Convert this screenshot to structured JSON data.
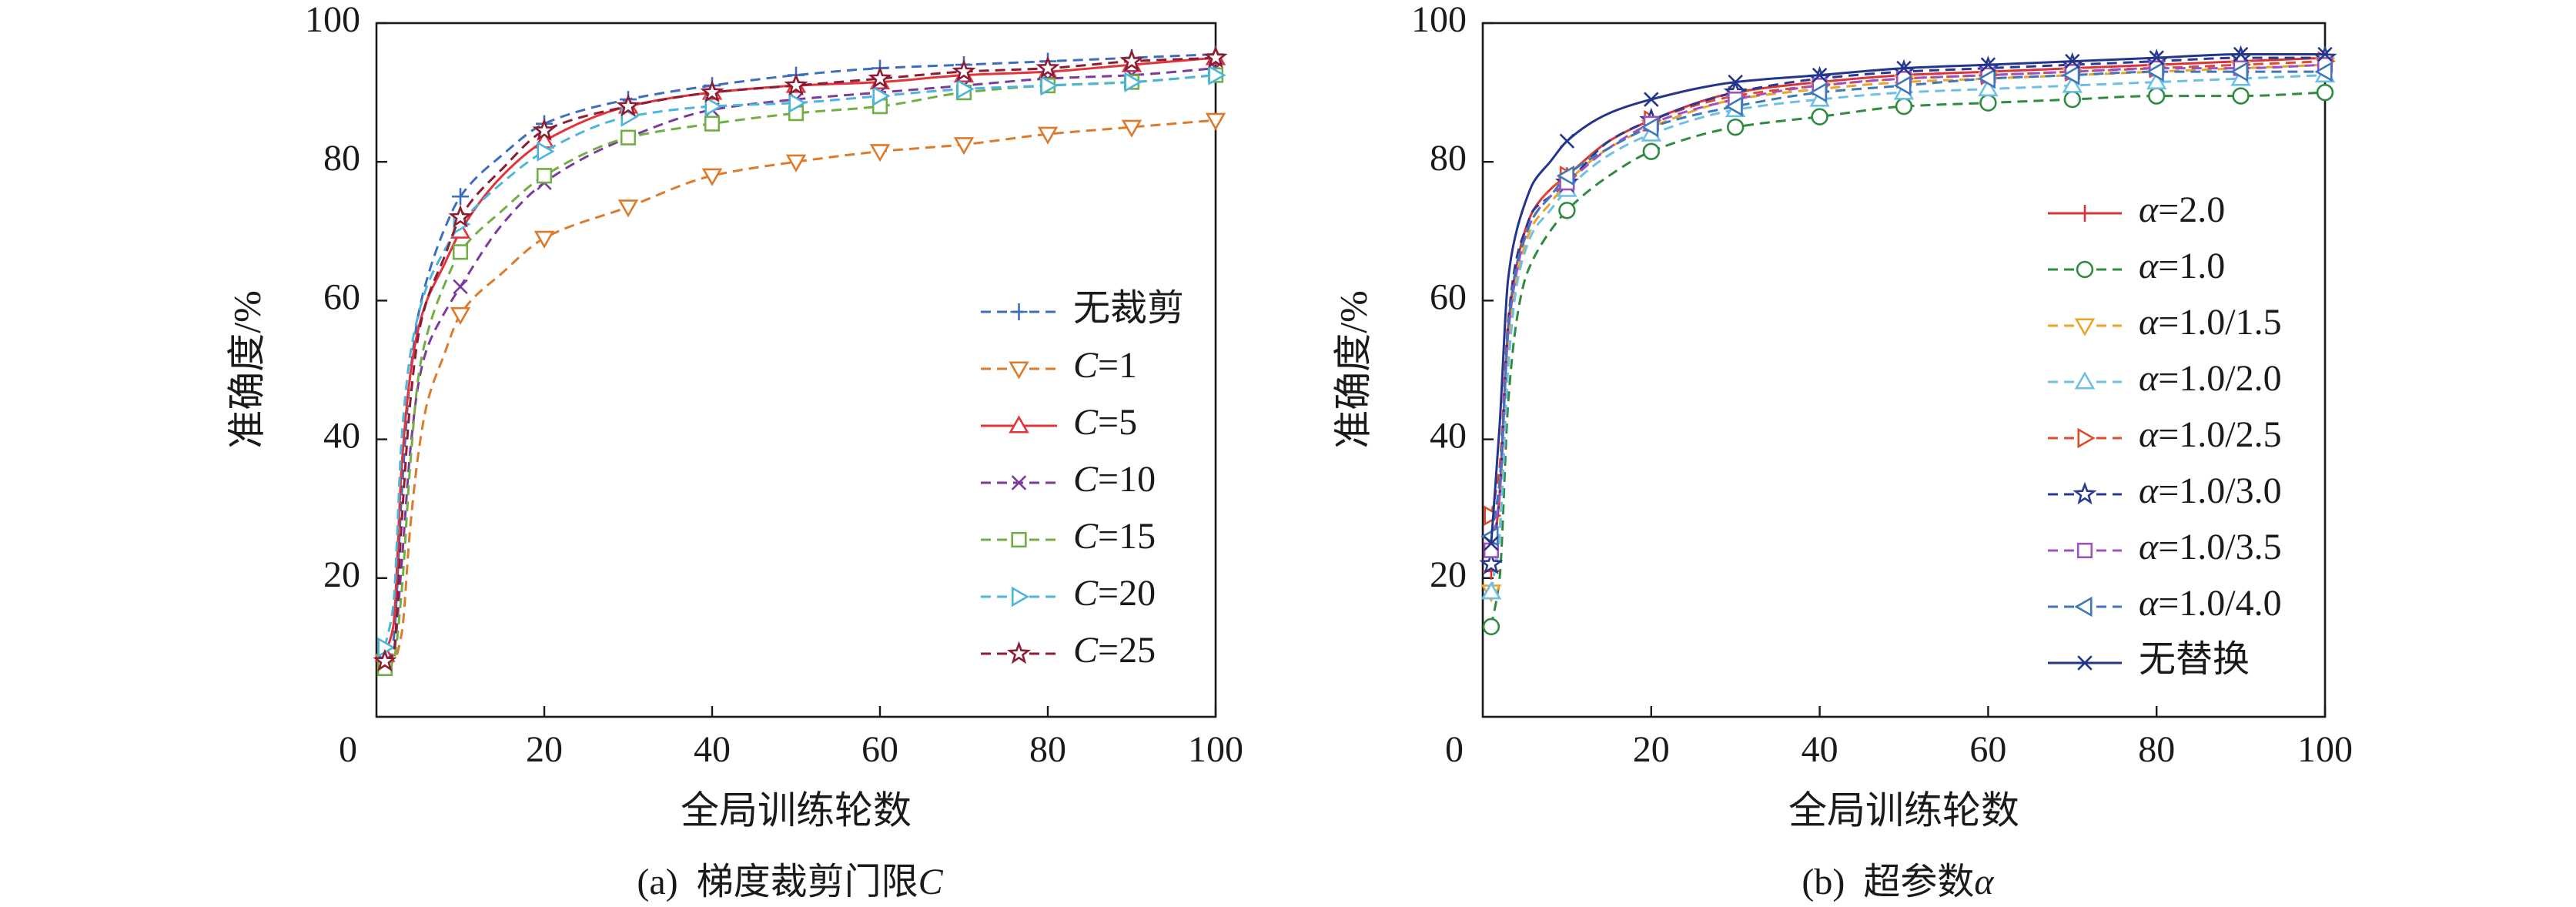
{
  "chart_data": [
    {
      "type": "line",
      "caption": "(a) 梯度裁剪门限C",
      "xlabel": "全局训练轮数",
      "ylabel": "准确度/%",
      "xlim": [
        0,
        100
      ],
      "ylim": [
        0,
        100
      ],
      "x_ticks": [
        0,
        20,
        40,
        60,
        80,
        100
      ],
      "y_ticks": [
        20,
        40,
        60,
        80,
        100
      ],
      "grid": false,
      "legend": "inside right",
      "x": [
        1,
        2,
        3,
        4,
        5,
        6,
        8,
        10,
        15,
        20,
        30,
        40,
        50,
        60,
        70,
        80,
        90,
        100
      ],
      "series": [
        {
          "name": "无裁剪",
          "color": "#3d6dc0",
          "line": "dashed",
          "marker": "plus",
          "values": [
            9,
            11,
            32,
            49,
            58,
            63,
            70,
            75,
            81,
            85.5,
            89,
            91,
            92.5,
            93.5,
            94,
            94.5,
            95,
            95.5
          ]
        },
        {
          "name": "C=1",
          "color": "#dd7b2c",
          "line": "dashed",
          "marker": "triangle-down",
          "values": [
            8,
            8,
            12,
            27,
            38,
            45,
            52,
            58,
            64,
            69,
            73.5,
            78,
            80,
            81.5,
            82.5,
            84,
            85,
            86
          ]
        },
        {
          "name": "C=5",
          "color": "#e1343b",
          "line": "solid",
          "marker": "triangle-up",
          "values": [
            9,
            13,
            36,
            49,
            56,
            60,
            65,
            70,
            78,
            83,
            88,
            90,
            91,
            91.5,
            92.5,
            93,
            94,
            95
          ]
        },
        {
          "name": "C=10",
          "color": "#7a3b9c",
          "line": "dashed",
          "marker": "x",
          "values": [
            8,
            9,
            22,
            38,
            48,
            53,
            58,
            62,
            71,
            77,
            83.5,
            87.5,
            89,
            90,
            91,
            92,
            92.5,
            93.5
          ]
        },
        {
          "name": "C=15",
          "color": "#72ae44",
          "line": "dashed",
          "marker": "square",
          "values": [
            7,
            8,
            18,
            36,
            49,
            55,
            62,
            67,
            73,
            78,
            83.5,
            85.5,
            87,
            88,
            90,
            91,
            91.5,
            92.5
          ]
        },
        {
          "name": "C=20",
          "color": "#4bb5dd",
          "line": "dashed",
          "marker": "triangle-right",
          "values": [
            10,
            16,
            40,
            52,
            58,
            62,
            67,
            71,
            77,
            81.5,
            86.5,
            88,
            88.5,
            89.5,
            90.5,
            91,
            91.5,
            92.5
          ]
        },
        {
          "name": "C=25",
          "color": "#8c1d33",
          "line": "dashed",
          "marker": "star",
          "values": [
            8,
            9,
            28,
            45,
            55,
            60,
            66,
            72,
            79,
            84.5,
            88,
            90,
            91,
            92,
            93,
            93.5,
            94.5,
            95
          ]
        }
      ]
    },
    {
      "type": "line",
      "caption": "(b) 超参数α",
      "xlabel": "全局训练轮数",
      "ylabel": "准确度/%",
      "xlim": [
        0,
        100
      ],
      "ylim": [
        0,
        100
      ],
      "x_ticks": [
        0,
        20,
        40,
        60,
        80,
        100
      ],
      "y_ticks": [
        20,
        40,
        60,
        80,
        100
      ],
      "grid": false,
      "legend": "inside right",
      "x": [
        1,
        2,
        3,
        4,
        5,
        6,
        8,
        10,
        15,
        20,
        30,
        40,
        50,
        60,
        70,
        80,
        90,
        100
      ],
      "series": [
        {
          "name": "α=2.0",
          "color": "#d8353b",
          "line": "solid",
          "marker": "plus",
          "values": [
            21,
            32,
            56,
            65,
            70,
            73,
            76,
            78,
            83,
            86,
            90,
            91.5,
            92.5,
            93,
            93.5,
            94,
            94.5,
            95
          ]
        },
        {
          "name": "α=1.0",
          "color": "#2f8b3f",
          "line": "dashed",
          "marker": "circle",
          "values": [
            13,
            20,
            45,
            57,
            63,
            66,
            70,
            73,
            78,
            81.5,
            85,
            86.5,
            88,
            88.5,
            89,
            89.5,
            89.5,
            90
          ]
        },
        {
          "name": "α=1.0/1.5",
          "color": "#e8a52b",
          "line": "dashed",
          "marker": "triangle-down",
          "values": [
            18,
            27,
            52,
            63,
            68,
            71,
            74,
            77,
            82,
            85,
            89,
            90.5,
            91.5,
            92,
            92.5,
            93,
            93.5,
            94
          ]
        },
        {
          "name": "α=1.0/2.0",
          "color": "#6cc0e6",
          "line": "dashed",
          "marker": "triangle-up",
          "values": [
            18,
            26,
            50,
            62,
            67,
            70,
            73,
            76,
            81,
            84,
            87.5,
            89,
            90,
            90.5,
            91,
            91.5,
            92,
            92.5
          ]
        },
        {
          "name": "α=1.0/2.5",
          "color": "#e04b2d",
          "line": "dashed",
          "marker": "triangle-right",
          "values": [
            29,
            36,
            57,
            66,
            70,
            73,
            76,
            78,
            83,
            86,
            89.5,
            91,
            92,
            92.5,
            93,
            93.5,
            94,
            94.5
          ]
        },
        {
          "name": "α=1.0/3.0",
          "color": "#2b3a90",
          "line": "dashed",
          "marker": "star",
          "values": [
            22,
            32,
            56,
            66,
            70,
            73,
            75,
            77,
            83,
            86,
            90,
            92,
            93,
            93.5,
            94,
            94.5,
            95,
            95
          ]
        },
        {
          "name": "α=1.0/3.5",
          "color": "#a050c0",
          "line": "dashed",
          "marker": "square",
          "values": [
            24,
            32,
            55,
            64,
            69,
            72,
            75,
            77,
            82,
            85.5,
            89,
            91,
            92,
            92.5,
            93,
            93.5,
            93.5,
            94
          ]
        },
        {
          "name": "α=1.0/4.0",
          "color": "#3f78b8",
          "line": "dashed",
          "marker": "triangle-left",
          "values": [
            26,
            34,
            56,
            65,
            69,
            72,
            75,
            78,
            82,
            85,
            88,
            90,
            91,
            92,
            92.5,
            93,
            93,
            93
          ]
        },
        {
          "name": "无替换",
          "color": "#24368c",
          "line": "solid",
          "marker": "x",
          "values": [
            25,
            42,
            63,
            70,
            74,
            77,
            80,
            83,
            87,
            89,
            91.5,
            92.5,
            93.5,
            94,
            94.5,
            95,
            95.5,
            95.5
          ]
        }
      ]
    }
  ]
}
